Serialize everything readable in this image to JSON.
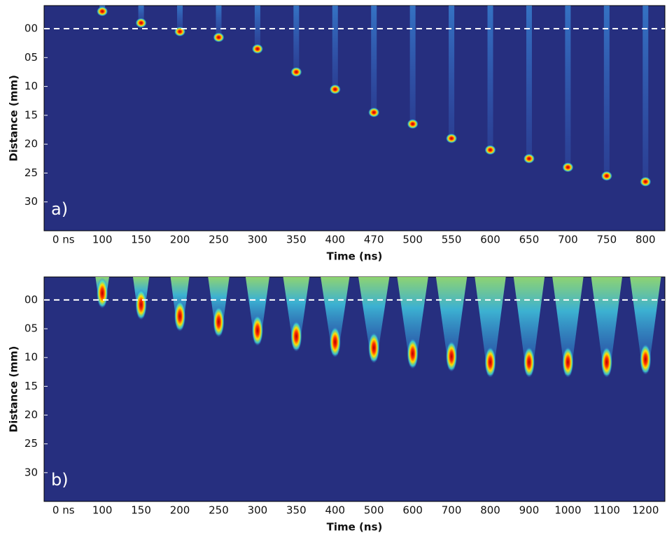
{
  "chart_data": [
    {
      "type": "jet",
      "annotation": "a)",
      "xlabel": "Time (ns)",
      "ylabel": "Distance (mm)",
      "categories": [
        "0 ns",
        "100",
        "150",
        "200",
        "250",
        "300",
        "350",
        "400",
        "470",
        "500",
        "550",
        "600",
        "650",
        "700",
        "750",
        "800"
      ],
      "values": [
        null,
        -3,
        -1,
        0.5,
        1.5,
        3.5,
        7.5,
        10.5,
        14.5,
        16.5,
        19,
        21,
        22.5,
        24,
        25.5,
        26.5
      ],
      "ylim": [
        -4,
        35
      ],
      "invert_y": true,
      "yticks": [
        {
          "value": 0,
          "label": "00"
        },
        {
          "value": 5,
          "label": "05"
        },
        10,
        15,
        20,
        25,
        30
      ],
      "reference_line": 0,
      "background": "#262f7f"
    },
    {
      "type": "plume",
      "annotation": "b)",
      "xlabel": "Time (ns)",
      "ylabel": "Distance (mm)",
      "categories": [
        "0 ns",
        "100",
        "150",
        "200",
        "250",
        "300",
        "350",
        "400",
        "500",
        "600",
        "700",
        "800",
        "900",
        "1000",
        "1100",
        "1200"
      ],
      "values": [
        null,
        1,
        3,
        5,
        6,
        7.5,
        8.5,
        9.5,
        10.5,
        11.5,
        12,
        13,
        13,
        13,
        13,
        12.5
      ],
      "ylim": [
        -4,
        35
      ],
      "invert_y": true,
      "yticks": [
        {
          "value": 0,
          "label": "00"
        },
        {
          "value": 5,
          "label": "05"
        },
        10,
        15,
        20,
        25,
        30
      ],
      "reference_line": 0,
      "background": "#262f7f"
    }
  ]
}
